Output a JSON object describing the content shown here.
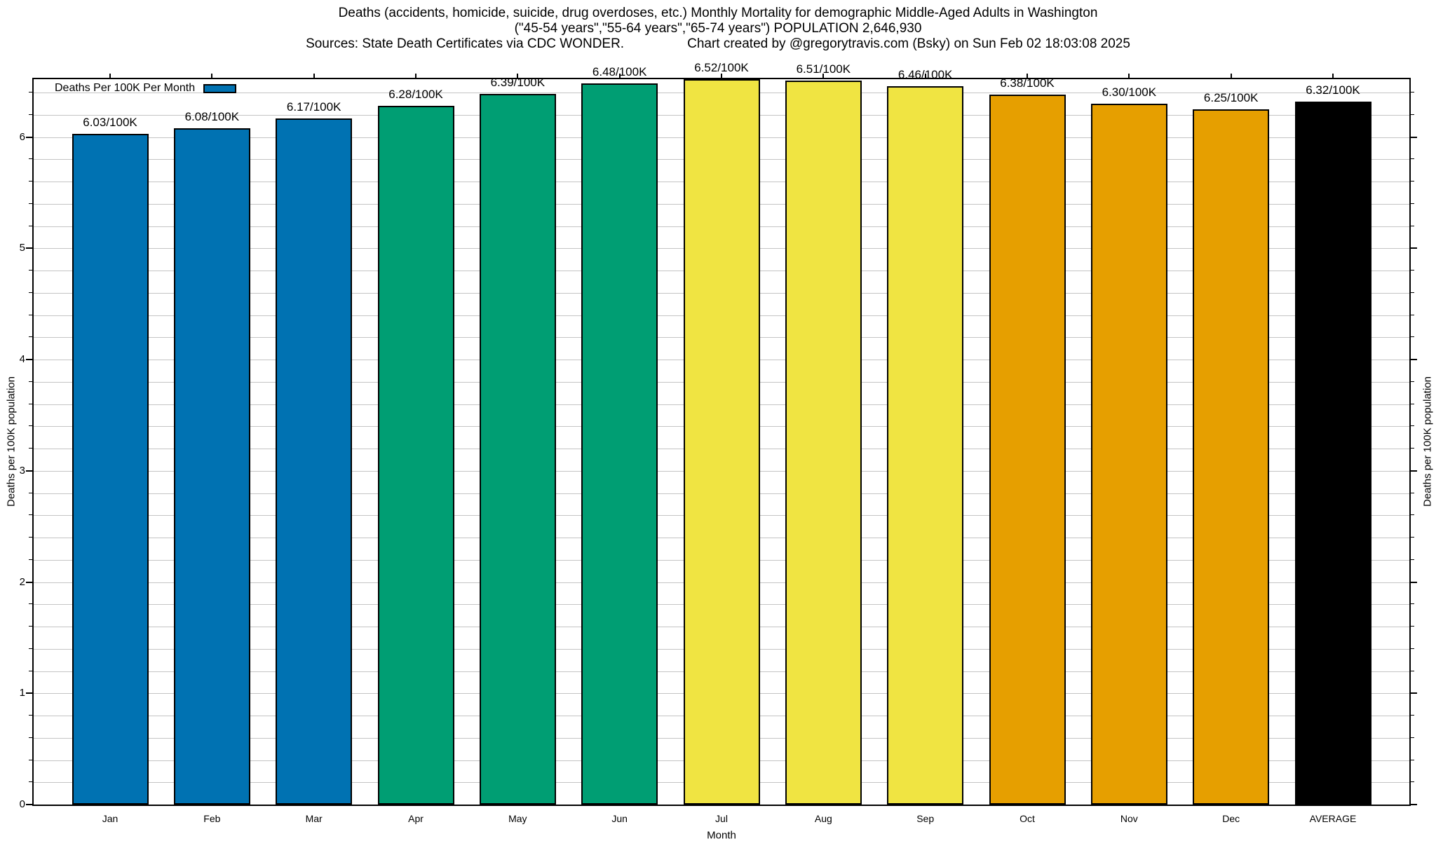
{
  "chart_data": {
    "type": "bar",
    "title": "Deaths (accidents, homicide, suicide, drug overdoses, etc.) Monthly Mortality for demographic Middle-Aged Adults in Washington",
    "subtitle": "(\"45-54 years\",\"55-64 years\",\"65-74 years\") POPULATION 2,646,930",
    "source_note": "Sources: State Death Certificates via CDC WONDER.",
    "credit_note": "Chart created by @gregorytravis.com (Bsky) on Sun Feb 02 18:03:08 2025",
    "legend": {
      "label": "Deaths Per 100K Per Month",
      "swatch_color": "#0072b2",
      "position": "top-left-inside"
    },
    "xlabel": "Month",
    "ylabel": "Deaths per 100K population",
    "ylabel_right": "Deaths per 100K population",
    "categories": [
      "Jan",
      "Feb",
      "Mar",
      "Apr",
      "May",
      "Jun",
      "Jul",
      "Aug",
      "Sep",
      "Oct",
      "Nov",
      "Dec",
      "AVERAGE"
    ],
    "values": [
      6.03,
      6.08,
      6.17,
      6.28,
      6.39,
      6.48,
      6.52,
      6.51,
      6.46,
      6.38,
      6.3,
      6.25,
      6.32
    ],
    "value_labels": [
      "6.03/100K",
      "6.08/100K",
      "6.17/100K",
      "6.28/100K",
      "6.39/100K",
      "6.48/100K",
      "6.52/100K",
      "6.51/100K",
      "6.46/100K",
      "6.38/100K",
      "6.30/100K",
      "6.25/100K",
      "6.32/100K"
    ],
    "bar_colors": [
      "#0072b2",
      "#0072b2",
      "#0072b2",
      "#009e73",
      "#009e73",
      "#009e73",
      "#f0e442",
      "#f0e442",
      "#f0e442",
      "#e69f00",
      "#e69f00",
      "#e69f00",
      "#000000"
    ],
    "ylim": [
      0,
      6.52
    ],
    "ytick_labels": [
      "0",
      "1",
      "2",
      "3",
      "4",
      "5",
      "6"
    ],
    "minor_tick_step": 0.2,
    "grid": "horizontal, major and minor",
    "grid_color": "#c4c4c4",
    "tick_direction": "out"
  }
}
